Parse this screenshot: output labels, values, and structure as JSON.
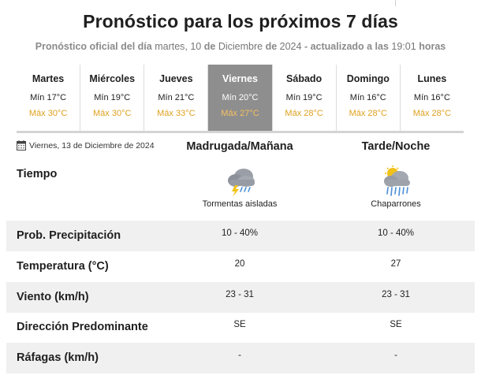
{
  "header": {
    "title": "Pronóstico para los próximos 7 días",
    "subtitle_a": "Pronóstico oficial del día",
    "subtitle_date": "martes, 10",
    "subtitle_de1": "de",
    "subtitle_month": "Diciembre",
    "subtitle_de2": "de",
    "subtitle_year": "2024",
    "subtitle_b": "- actualizado a las",
    "subtitle_time": "19:01",
    "subtitle_c": "horas"
  },
  "days": [
    {
      "name": "Martes",
      "min": "Mín 17°C",
      "max": "Máx 30°C"
    },
    {
      "name": "Miércoles",
      "min": "Mín 19°C",
      "max": "Máx 30°C"
    },
    {
      "name": "Jueves",
      "min": "Mín 21°C",
      "max": "Máx 33°C"
    },
    {
      "name": "Viernes",
      "min": "Mín 20°C",
      "max": "Máx 27°C"
    },
    {
      "name": "Sábado",
      "min": "Mín 19°C",
      "max": "Máx 28°C"
    },
    {
      "name": "Domingo",
      "min": "Mín 16°C",
      "max": "Máx 28°C"
    },
    {
      "name": "Lunes",
      "min": "Mín 16°C",
      "max": "Máx 28°C"
    }
  ],
  "selected_day": "Viernes",
  "detail": {
    "date": "Viernes, 13 de Diciembre de 2024",
    "col1": "Madrugada/Mañana",
    "col2": "Tarde/Noche",
    "tiempo_label": "Tiempo",
    "tiempo1": "Tormentas aisladas",
    "tiempo1_icon": "thunderstorm-cloud-icon",
    "tiempo2": "Chaparrones",
    "tiempo2_icon": "sun-cloud-rain-icon",
    "rows": [
      {
        "label": "Prob. Precipitación",
        "v1": "10 - 40%",
        "v2": "10 - 40%"
      },
      {
        "label": "Temperatura (°C)",
        "v1": "20",
        "v2": "27"
      },
      {
        "label": "Viento (km/h)",
        "v1": "23 - 31",
        "v2": "23 - 31"
      },
      {
        "label": "Dirección Predominante",
        "v1": "SE",
        "v2": "SE"
      },
      {
        "label": "Ráfagas (km/h)",
        "v1": "-",
        "v2": "-"
      }
    ]
  },
  "colors": {
    "max_temp": "#e0a020",
    "active_day_bg": "#8e8e8e",
    "row_shade": "#f0f0f0"
  }
}
